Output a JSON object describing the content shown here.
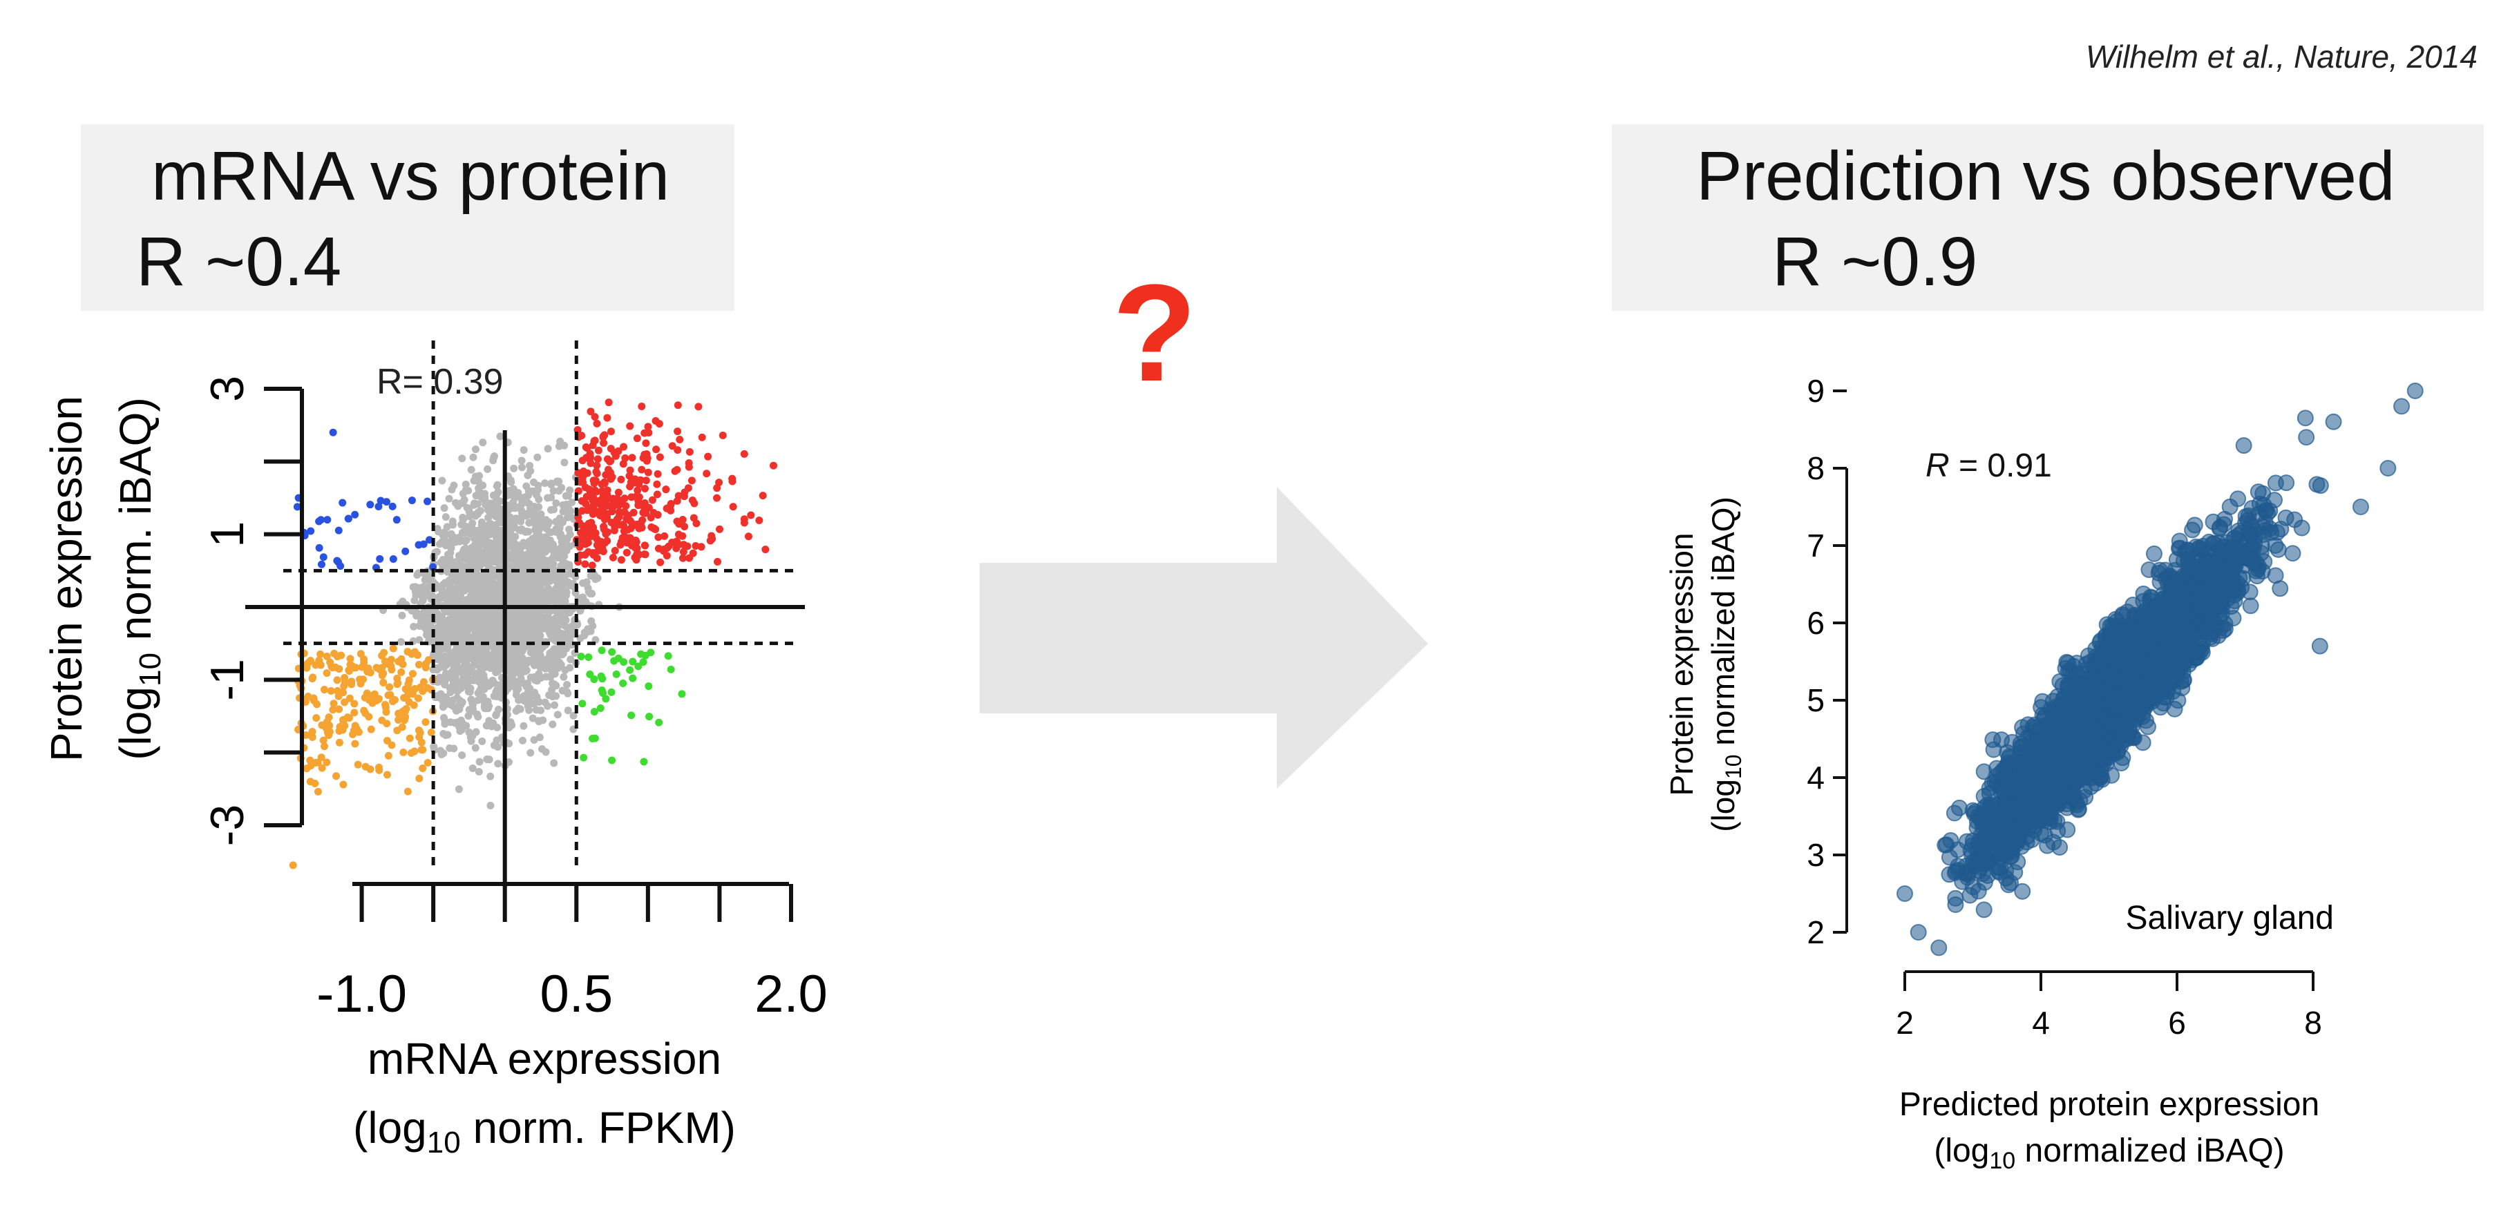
{
  "citation": "Wilhelm et al., Nature, 2014",
  "left_box": {
    "title": "mRNA vs protein",
    "subtitle": "R ~0.4"
  },
  "right_box": {
    "title": "Prediction vs observed",
    "subtitle": "R ~0.9"
  },
  "question_mark": "?",
  "arrow_icon": "right-arrow-icon",
  "colors": {
    "grey": "#b8b8b8",
    "red": "#f0302a",
    "blue": "#2a52e0",
    "orange": "#f5a432",
    "green": "#3edc2e",
    "navy": "#1f5a8e",
    "question": "#f0301e",
    "arrow": "#e6e6e6"
  },
  "chart_data": [
    {
      "type": "scatter",
      "annotation": "R= 0.39",
      "ylabel": "Protein expression",
      "ylabel2_pre": "(log",
      "ylabel2_sub": "10",
      "ylabel2_post": " norm. iBAQ)",
      "xlabel": "mRNA expression",
      "xlabel2_pre": "(log",
      "xlabel2_sub": "10",
      "xlabel2_post": " norm. FPKM)",
      "x_ticks": [
        -1.5,
        -1.0,
        -0.5,
        0.0,
        0.5,
        1.0,
        1.5,
        2.0
      ],
      "x_tick_labels": [
        {
          "x": -1.0,
          "label": "-1.0"
        },
        {
          "x": 0.5,
          "label": "0.5"
        },
        {
          "x": 2.0,
          "label": "2.0"
        }
      ],
      "y_ticks": [
        -3,
        -2,
        -1,
        0,
        1,
        2,
        3
      ],
      "y_tick_labels": [
        {
          "y": -3,
          "label": "-3"
        },
        {
          "y": -1,
          "label": "-1"
        },
        {
          "y": 1,
          "label": "1"
        },
        {
          "y": 3,
          "label": "3"
        }
      ],
      "xlim": [
        -1.5,
        2.0
      ],
      "ylim": [
        -3.0,
        3.0
      ],
      "thresholds": {
        "x_low": -0.5,
        "x_high": 0.5,
        "y_low": -0.5,
        "y_high": 0.5
      },
      "groups": [
        {
          "name": "",
          "color": "grey",
          "count": 2600,
          "cx": -0.05,
          "cy": 0.0,
          "sx": 0.32,
          "sy": 0.78
        },
        {
          "name": "",
          "color": "red",
          "count": 350,
          "cx": 0.85,
          "cy": 1.55
        },
        {
          "name": "",
          "color": "blue",
          "count": 35,
          "cx": -1.0,
          "cy": 1.05
        },
        {
          "name": "",
          "color": "orange",
          "count": 230,
          "cx": -0.95,
          "cy": -1.3
        },
        {
          "name": "",
          "color": "green",
          "count": 40,
          "cx": 0.75,
          "cy": -1.0
        }
      ]
    },
    {
      "type": "scatter",
      "annotation_r": "R",
      "annotation_value": " = 0.91",
      "legend": "Salivary gland",
      "ylabel": "Protein expression",
      "ylabel2_pre": "(log",
      "ylabel2_sub": "10",
      "ylabel2_post": " normalized iBAQ)",
      "xlabel": "Predicted protein expression",
      "xlabel2_pre": "(log",
      "xlabel2_sub": "10",
      "xlabel2_post": " normalized iBAQ)",
      "x_ticks": [
        2,
        4,
        6,
        8
      ],
      "y_ticks": [
        2,
        3,
        4,
        5,
        6,
        7,
        8,
        9
      ],
      "xlim": [
        2,
        8
      ],
      "ylim": [
        2,
        9
      ],
      "relationship": {
        "slope": 1.0,
        "intercept": 0.0,
        "r": 0.91,
        "x_range": [
          2.8,
          8.0
        ],
        "count": 3200
      }
    }
  ]
}
